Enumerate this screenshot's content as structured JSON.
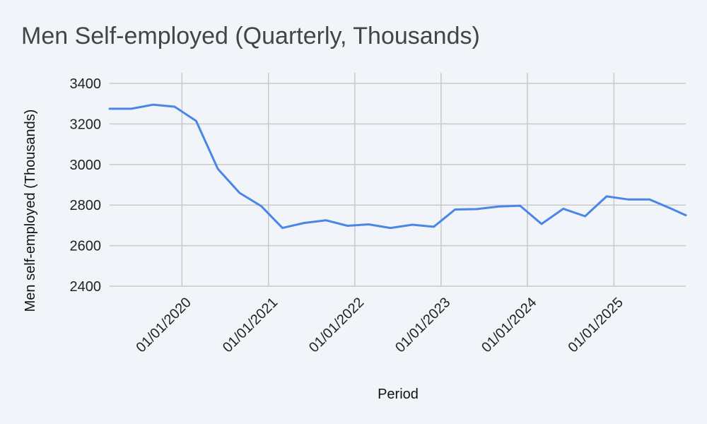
{
  "chart_data": {
    "type": "line",
    "title": "Men Self-employed (Quarterly, Thousands)",
    "xlabel": "Period",
    "ylabel": "Men self-employed (Thousands)",
    "ylim": [
      2400,
      3400
    ],
    "yticks": [
      2400,
      2600,
      2800,
      3000,
      3200,
      3400
    ],
    "xticks": [
      "01/01/2020",
      "01/01/2021",
      "01/01/2022",
      "01/01/2023",
      "01/01/2024",
      "01/01/2025"
    ],
    "xlim": [
      "2019-03-01",
      "2025-11-01"
    ],
    "grid": true,
    "colors": {
      "line": "#4a86e8"
    },
    "series": [
      {
        "x": [
          "2019-03-01",
          "2019-06-01",
          "2019-09-01",
          "2019-12-01",
          "2020-03-01",
          "2020-06-01",
          "2020-09-01",
          "2020-12-01",
          "2021-03-01",
          "2021-06-01",
          "2021-09-01",
          "2021-12-01",
          "2022-03-01",
          "2022-06-01",
          "2022-09-01",
          "2022-12-01",
          "2023-03-01",
          "2023-06-01",
          "2023-09-01",
          "2023-12-01",
          "2024-03-01",
          "2024-06-01",
          "2024-09-01",
          "2024-12-01",
          "2025-03-01",
          "2025-06-01",
          "2025-09-01",
          "2025-11-01"
        ],
        "values": [
          3275,
          3275,
          3295,
          3285,
          3215,
          2978,
          2860,
          2795,
          2687,
          2712,
          2725,
          2698,
          2705,
          2687,
          2703,
          2693,
          2778,
          2780,
          2793,
          2797,
          2707,
          2782,
          2745,
          2843,
          2828,
          2828,
          2782,
          2750
        ]
      }
    ]
  }
}
